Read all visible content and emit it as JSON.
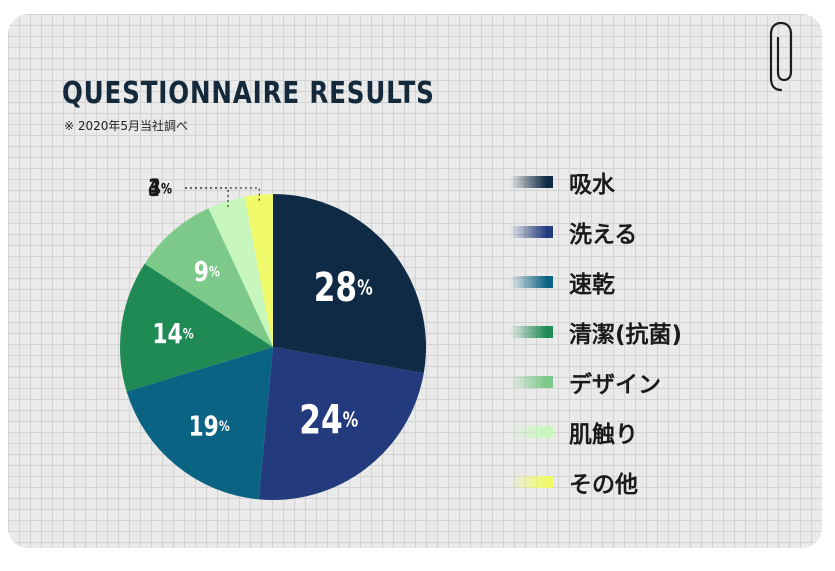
{
  "title": "QUESTIONNAIRE RESULTS",
  "note": "※ 2020年5月当社調べ",
  "chart_data": {
    "type": "pie",
    "unit": "%",
    "categories": [
      "吸水",
      "洗える",
      "速乾",
      "清潔(抗菌)",
      "デザイン",
      "肌触り",
      "その他"
    ],
    "values": [
      28,
      24,
      19,
      14,
      9,
      4,
      3
    ],
    "colors": [
      "#0f2a45",
      "#233a7c",
      "#0b6384",
      "#208a55",
      "#7cc98a",
      "#c8f7bd",
      "#f0fa6b"
    ],
    "legend_position": "right"
  },
  "legend": [
    {
      "label": "吸水",
      "color": "#0f2a45"
    },
    {
      "label": "洗える",
      "color": "#233a7c"
    },
    {
      "label": "速乾",
      "color": "#0b6384"
    },
    {
      "label": "清潔(抗菌)",
      "color": "#208a55"
    },
    {
      "label": "デザイン",
      "color": "#7cc98a"
    },
    {
      "label": "肌触り",
      "color": "#c8f7bd"
    },
    {
      "label": "その他",
      "color": "#f0fa6b"
    }
  ]
}
